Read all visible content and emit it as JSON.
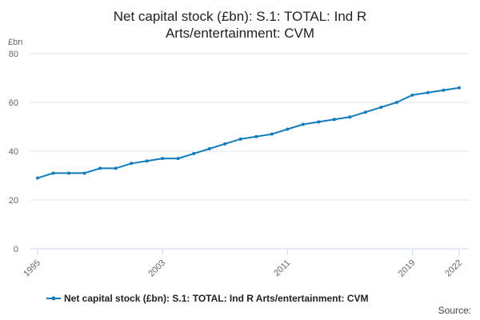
{
  "chart_data": {
    "type": "line",
    "title_lines": [
      "Net capital stock (£bn): S.1: TOTAL: Ind R",
      "Arts/entertainment: CVM"
    ],
    "y_unit": "£bn",
    "ylim": [
      0,
      80
    ],
    "y_ticks": [
      0,
      20,
      40,
      60,
      80
    ],
    "xlim": [
      1995,
      2022
    ],
    "x_ticks": [
      1995,
      2003,
      2011,
      2019,
      2022
    ],
    "grid": true,
    "legend_position": "bottom",
    "source_label": "Source:",
    "series": [
      {
        "name": "Net capital stock (£bn): S.1: TOTAL: Ind R Arts/entertainment: CVM",
        "color": "#0f7dbc",
        "x": [
          1995,
          1996,
          1997,
          1998,
          1999,
          2000,
          2001,
          2002,
          2003,
          2004,
          2005,
          2006,
          2007,
          2008,
          2009,
          2010,
          2011,
          2012,
          2013,
          2014,
          2015,
          2016,
          2017,
          2018,
          2019,
          2020,
          2021,
          2022
        ],
        "values": [
          29,
          31,
          31,
          31,
          33,
          33,
          35,
          36,
          37,
          37,
          39,
          41,
          43,
          45,
          46,
          47,
          49,
          51,
          52,
          53,
          54,
          56,
          58,
          60,
          63,
          64,
          65,
          66
        ]
      }
    ]
  }
}
